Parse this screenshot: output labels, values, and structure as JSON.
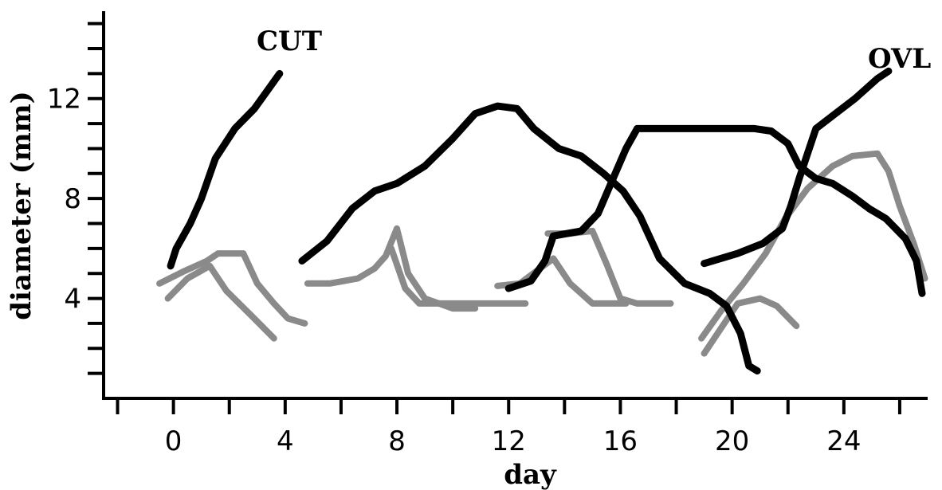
{
  "chart_data": {
    "type": "line",
    "xlabel": "day",
    "ylabel": "diameter (mm)",
    "xlim": [
      -2.5,
      27
    ],
    "ylim": [
      0,
      15.5
    ],
    "x_tick_labels": [
      0,
      4,
      8,
      12,
      16,
      20,
      24
    ],
    "y_tick_labels": [
      4,
      8,
      12
    ],
    "annotations": [
      "CUT",
      "OVL"
    ],
    "colors": {
      "dominant": "#000000",
      "subordinate": "#8a8a8a"
    },
    "series": [
      {
        "style": "dominant",
        "points": [
          [
            -0.1,
            5.3
          ],
          [
            0.1,
            6.0
          ],
          [
            0.6,
            7.0
          ],
          [
            1.0,
            8.0
          ],
          [
            1.5,
            9.6
          ],
          [
            2.2,
            10.8
          ],
          [
            2.9,
            11.6
          ],
          [
            3.8,
            13.0
          ]
        ]
      },
      {
        "style": "dominant",
        "points": [
          [
            4.6,
            5.5
          ],
          [
            5.5,
            6.3
          ],
          [
            6.4,
            7.6
          ],
          [
            7.2,
            8.3
          ],
          [
            8.0,
            8.6
          ],
          [
            9.0,
            9.3
          ],
          [
            10.0,
            10.4
          ],
          [
            10.8,
            11.4
          ],
          [
            11.6,
            11.7
          ],
          [
            12.3,
            11.6
          ],
          [
            12.9,
            10.8
          ],
          [
            13.8,
            10.0
          ],
          [
            14.6,
            9.7
          ],
          [
            15.4,
            9.0
          ],
          [
            16.1,
            8.3
          ],
          [
            16.7,
            7.3
          ],
          [
            17.4,
            5.6
          ],
          [
            18.3,
            4.6
          ],
          [
            19.2,
            4.2
          ],
          [
            19.8,
            3.7
          ],
          [
            20.3,
            2.6
          ],
          [
            20.6,
            1.3
          ],
          [
            20.9,
            1.1
          ]
        ]
      },
      {
        "style": "dominant",
        "points": [
          [
            12.0,
            4.4
          ],
          [
            12.8,
            4.7
          ],
          [
            13.3,
            5.5
          ],
          [
            13.6,
            6.5
          ],
          [
            14.1,
            6.6
          ],
          [
            14.6,
            6.7
          ],
          [
            15.2,
            7.4
          ],
          [
            15.7,
            8.7
          ],
          [
            16.2,
            10.0
          ],
          [
            16.6,
            10.8
          ],
          [
            17.4,
            10.8
          ],
          [
            18.5,
            10.8
          ],
          [
            19.6,
            10.8
          ],
          [
            20.8,
            10.8
          ],
          [
            21.4,
            10.7
          ],
          [
            22.0,
            10.2
          ],
          [
            22.4,
            9.3
          ],
          [
            23.0,
            8.8
          ],
          [
            23.6,
            8.6
          ],
          [
            24.3,
            8.1
          ],
          [
            24.9,
            7.6
          ],
          [
            25.5,
            7.2
          ],
          [
            26.2,
            6.4
          ],
          [
            26.6,
            5.5
          ],
          [
            26.8,
            4.2
          ]
        ]
      },
      {
        "style": "dominant",
        "points": [
          [
            19.0,
            5.4
          ],
          [
            20.2,
            5.8
          ],
          [
            21.1,
            6.2
          ],
          [
            21.8,
            6.8
          ],
          [
            22.1,
            7.7
          ],
          [
            22.4,
            8.8
          ],
          [
            22.7,
            9.8
          ],
          [
            23.0,
            10.8
          ],
          [
            23.7,
            11.4
          ],
          [
            24.4,
            12.0
          ],
          [
            25.2,
            12.8
          ],
          [
            25.6,
            13.1
          ]
        ]
      },
      {
        "style": "subordinate",
        "points": [
          [
            -0.5,
            4.6
          ],
          [
            0.4,
            5.1
          ],
          [
            1.2,
            5.5
          ],
          [
            1.6,
            5.8
          ],
          [
            2.5,
            5.8
          ],
          [
            3.0,
            4.6
          ],
          [
            3.6,
            3.8
          ],
          [
            4.1,
            3.2
          ],
          [
            4.7,
            3.0
          ]
        ]
      },
      {
        "style": "subordinate",
        "points": [
          [
            -0.2,
            4.0
          ],
          [
            0.5,
            4.8
          ],
          [
            1.3,
            5.3
          ],
          [
            1.9,
            4.3
          ],
          [
            2.8,
            3.3
          ],
          [
            3.6,
            2.4
          ]
        ]
      },
      {
        "style": "subordinate",
        "points": [
          [
            4.8,
            4.6
          ],
          [
            5.6,
            4.6
          ],
          [
            6.6,
            4.8
          ],
          [
            7.2,
            5.2
          ],
          [
            7.6,
            5.7
          ],
          [
            8.0,
            6.8
          ],
          [
            8.4,
            5.0
          ],
          [
            9.0,
            4.0
          ],
          [
            10.0,
            3.6
          ],
          [
            10.8,
            3.6
          ]
        ]
      },
      {
        "style": "subordinate",
        "points": [
          [
            7.8,
            6.0
          ],
          [
            8.3,
            4.4
          ],
          [
            8.8,
            3.8
          ],
          [
            10.0,
            3.8
          ],
          [
            11.2,
            3.8
          ],
          [
            12.6,
            3.8
          ]
        ]
      },
      {
        "style": "subordinate",
        "points": [
          [
            11.6,
            4.5
          ],
          [
            12.4,
            4.6
          ],
          [
            13.0,
            5.1
          ],
          [
            13.6,
            5.6
          ],
          [
            14.2,
            4.6
          ],
          [
            15.0,
            3.8
          ],
          [
            16.2,
            3.8
          ]
        ]
      },
      {
        "style": "subordinate",
        "points": [
          [
            13.4,
            6.6
          ],
          [
            14.2,
            6.6
          ],
          [
            15.0,
            6.7
          ],
          [
            15.5,
            5.4
          ],
          [
            16.0,
            4.0
          ],
          [
            16.6,
            3.8
          ],
          [
            17.8,
            3.8
          ]
        ]
      },
      {
        "style": "subordinate",
        "points": [
          [
            19.0,
            1.8
          ],
          [
            19.6,
            2.8
          ],
          [
            20.2,
            3.8
          ],
          [
            21.0,
            4.0
          ],
          [
            21.6,
            3.7
          ],
          [
            22.3,
            2.9
          ]
        ]
      },
      {
        "style": "subordinate",
        "points": [
          [
            18.9,
            2.4
          ],
          [
            19.6,
            3.5
          ],
          [
            20.4,
            4.6
          ],
          [
            21.2,
            5.8
          ],
          [
            21.9,
            7.2
          ],
          [
            22.7,
            8.4
          ],
          [
            23.6,
            9.3
          ],
          [
            24.3,
            9.7
          ],
          [
            25.2,
            9.8
          ],
          [
            25.6,
            9.1
          ],
          [
            26.0,
            7.7
          ],
          [
            26.5,
            6.2
          ],
          [
            26.9,
            4.8
          ]
        ]
      }
    ]
  }
}
